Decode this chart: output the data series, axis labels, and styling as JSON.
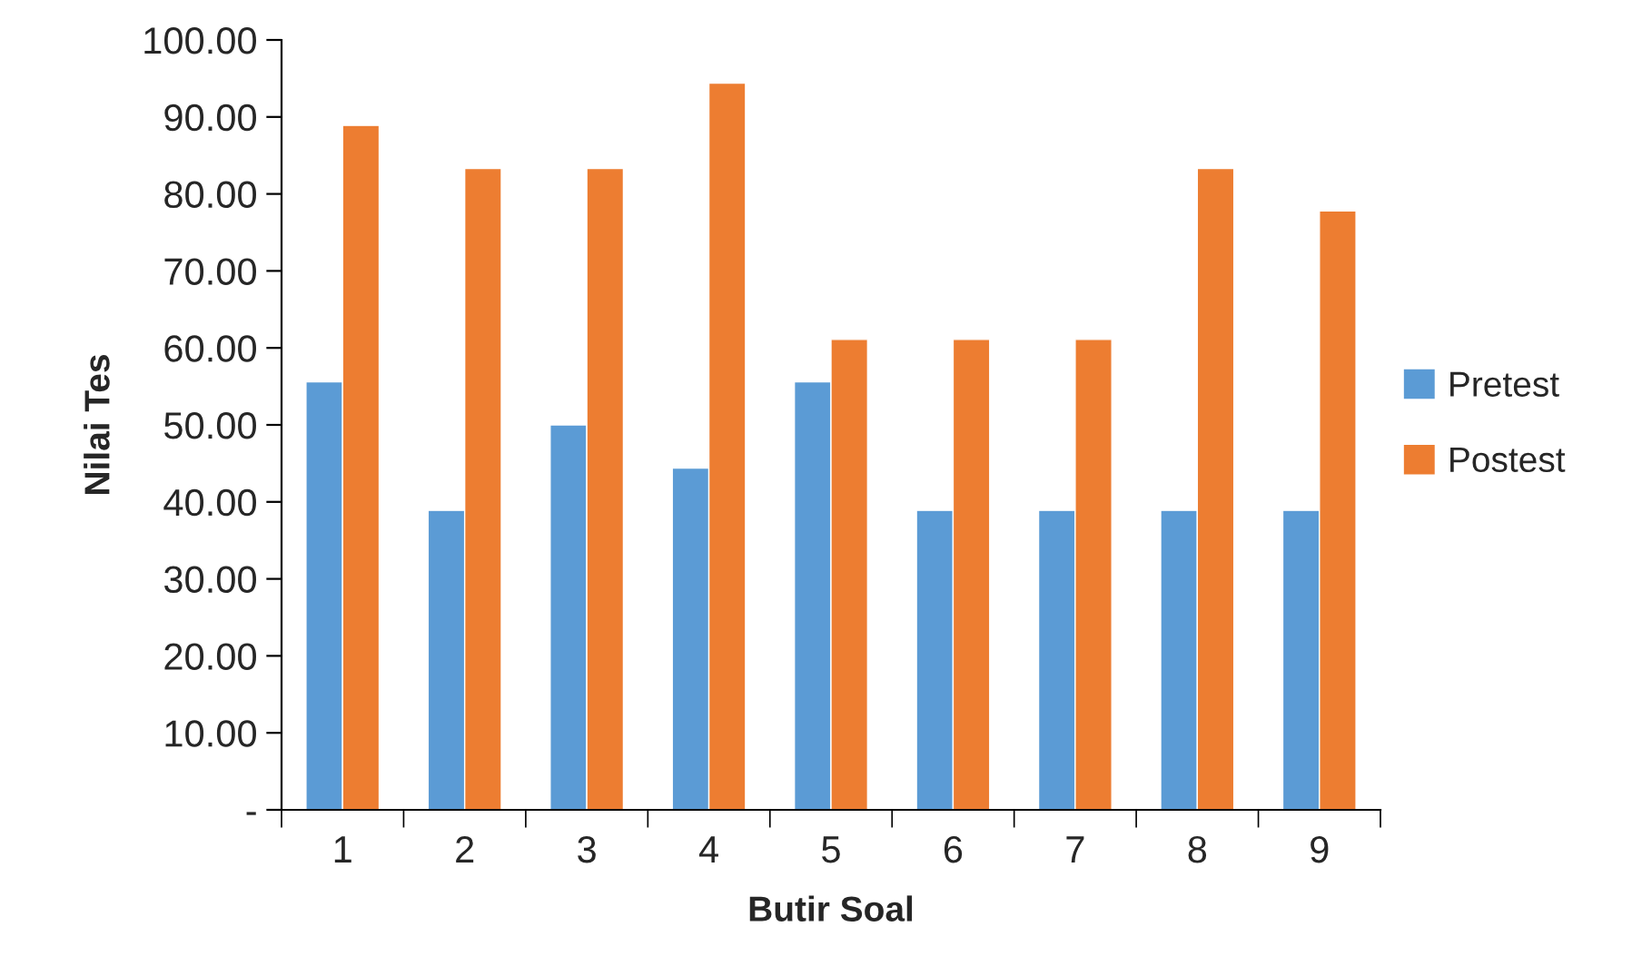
{
  "chart_data": {
    "type": "bar",
    "xlabel": "Butir Soal",
    "ylabel": "Nilai Tes",
    "categories": [
      "1",
      "2",
      "3",
      "4",
      "5",
      "6",
      "7",
      "8",
      "9"
    ],
    "series": [
      {
        "name": "Pretest",
        "color": "#5b9bd5",
        "values": [
          55.6,
          38.9,
          50.0,
          44.4,
          55.6,
          38.9,
          38.9,
          38.9,
          38.9
        ]
      },
      {
        "name": "Postest",
        "color": "#ed7d31",
        "values": [
          88.9,
          83.3,
          83.3,
          94.4,
          61.1,
          61.1,
          61.1,
          83.3,
          77.8
        ]
      }
    ],
    "ylim": [
      0,
      100
    ],
    "yticks": [
      {
        "value": 0,
        "label": "-"
      },
      {
        "value": 10,
        "label": "10.00"
      },
      {
        "value": 20,
        "label": "20.00"
      },
      {
        "value": 30,
        "label": "30.00"
      },
      {
        "value": 40,
        "label": "40.00"
      },
      {
        "value": 50,
        "label": "50.00"
      },
      {
        "value": 60,
        "label": "60.00"
      },
      {
        "value": 70,
        "label": "70.00"
      },
      {
        "value": 80,
        "label": "80.00"
      },
      {
        "value": 90,
        "label": "90.00"
      },
      {
        "value": 100,
        "label": "100.00"
      }
    ],
    "grid": false,
    "legend": "right"
  }
}
